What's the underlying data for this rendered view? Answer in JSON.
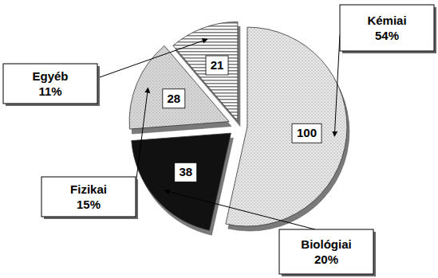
{
  "chart_data": {
    "type": "pie",
    "categories": [
      "Kémiai",
      "Biológiai",
      "Fizikai",
      "Egyéb"
    ],
    "values": [
      100,
      38,
      28,
      21
    ],
    "percents": [
      54,
      20,
      15,
      11
    ],
    "percent_labels": [
      "54%",
      "20%",
      "15%",
      "11%"
    ],
    "colors": [
      "#ececec",
      "#111111",
      "#dedede",
      "#ffffff"
    ],
    "data_labels": true
  }
}
